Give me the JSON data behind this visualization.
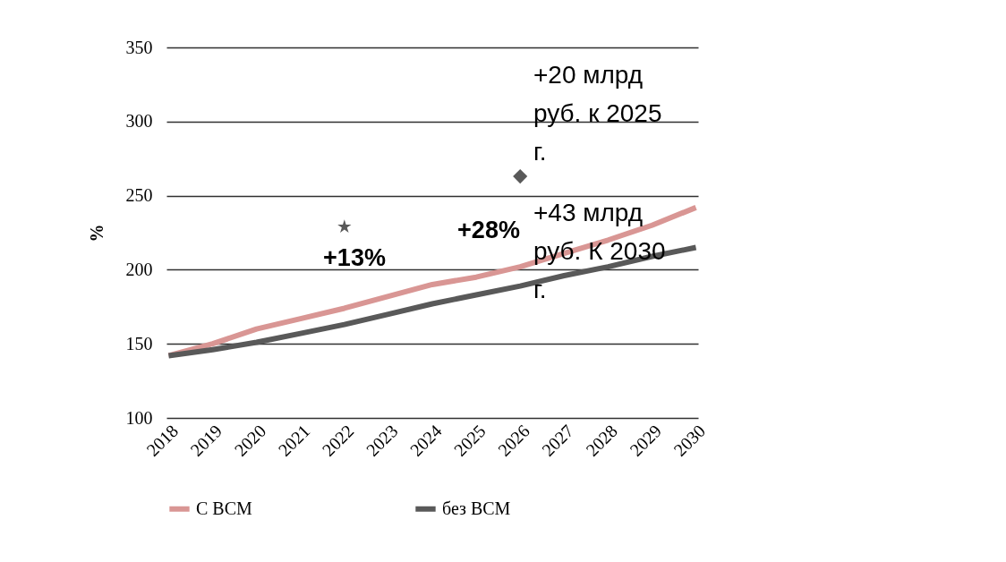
{
  "chart_data": {
    "type": "line",
    "ylabel": "%",
    "categories": [
      "2018",
      "2019",
      "2020",
      "2021",
      "2022",
      "2023",
      "2024",
      "2025",
      "2026",
      "2027",
      "2028",
      "2029",
      "2030"
    ],
    "series": [
      {
        "name": "С ВСМ",
        "color": "#d99694",
        "values": [
          142,
          150,
          160,
          167,
          174,
          182,
          190,
          195,
          202,
          211,
          220,
          230,
          242
        ]
      },
      {
        "name": "без ВСМ",
        "color": "#595959",
        "values": [
          142,
          146,
          151,
          157,
          163,
          170,
          177,
          183,
          189,
          196,
          202,
          209,
          215
        ]
      },
      {
        "type": "scatter",
        "values": [
          null,
          null,
          null,
          null,
          229,
          null,
          null,
          null,
          null,
          null,
          null,
          null,
          null
        ],
        "marker": "star",
        "color": "#595959"
      },
      {
        "type": "scatter",
        "values": [
          null,
          null,
          null,
          null,
          null,
          null,
          null,
          null,
          263,
          null,
          null,
          null,
          null
        ],
        "marker": "diamond",
        "color": "#595959"
      }
    ],
    "ylim": [
      100,
      350
    ],
    "yticks": [
      100,
      150,
      200,
      250,
      300,
      350
    ],
    "grid": "y",
    "legend": "bottom",
    "line_style": "solid",
    "annotations": [
      "+13%",
      "+28%",
      "+20 млрд руб. к 2025 г.",
      "+43 млрд руб.  К 2030 г."
    ]
  }
}
